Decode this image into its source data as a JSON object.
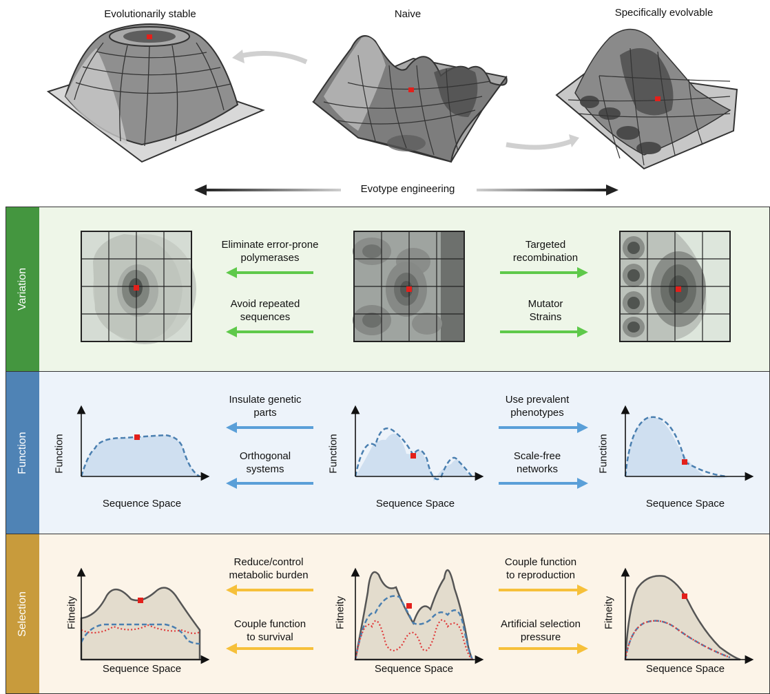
{
  "top": {
    "landscapes": [
      {
        "title": "Evolutionarily stable"
      },
      {
        "title": "Naive"
      },
      {
        "title": "Specifically evolvable"
      }
    ],
    "engineering_label": "Evotype engineering"
  },
  "panels": {
    "variation": {
      "label": "Variation",
      "bg": "#eef6e8",
      "bar": "#44963f",
      "arrow_color": "#5ec94a",
      "left_labels": [
        "Eliminate error-prone\npolymerases",
        "Avoid repeated\nsequences"
      ],
      "right_labels": [
        "Targeted\nrecombination",
        "Mutator\nStrains"
      ]
    },
    "function": {
      "label": "Function",
      "bg": "#edf3fa",
      "bar": "#4f83b5",
      "arrow_color": "#5a9fd8",
      "left_labels": [
        "Insulate genetic\nparts",
        "Orthogonal\nsystems"
      ],
      "right_labels": [
        "Use prevalent\nphenotypes",
        "Scale-free\nnetworks"
      ],
      "y_label": "Function",
      "x_label": "Sequence Space"
    },
    "selection": {
      "label": "Selection",
      "bg": "#fcf4e8",
      "bar": "#c89b3c",
      "arrow_color": "#f6c03a",
      "left_labels": [
        "Reduce/control\nmetabolic burden",
        "Couple function\nto survival"
      ],
      "right_labels": [
        "Couple function\nto reproduction",
        "Artificial selection\npressure"
      ],
      "y_label": "Fitneity",
      "x_label": "Sequence Space"
    }
  },
  "colors": {
    "marker": "#e3201b",
    "dashed": "#4a7fb0",
    "dotted": "#e03a3a",
    "fitness_line": "#555555"
  }
}
